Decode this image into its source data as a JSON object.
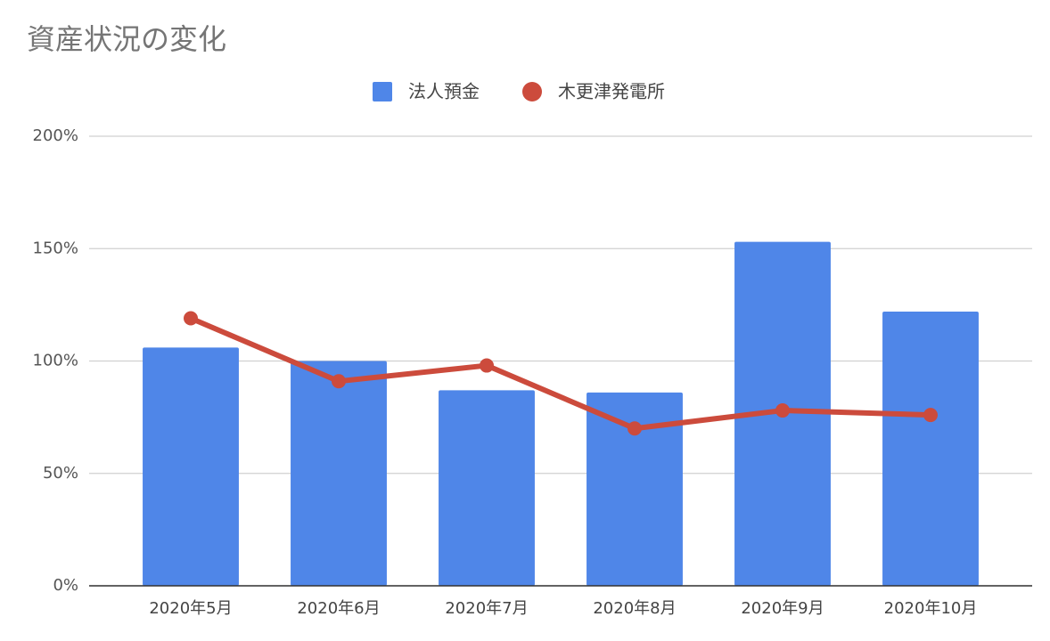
{
  "chart_data": {
    "type": "combo",
    "title": "資産状況の変化",
    "categories": [
      "2020年5月",
      "2020年6月",
      "2020年7月",
      "2020年8月",
      "2020年9月",
      "2020年10月"
    ],
    "series": [
      {
        "name": "法人預金",
        "type": "bar",
        "color": "#4f86e8",
        "values": [
          106,
          100,
          87,
          86,
          153,
          122
        ]
      },
      {
        "name": "木更津発電所",
        "type": "line",
        "color": "#cc4b3c",
        "values": [
          119,
          91,
          98,
          70,
          78,
          76
        ]
      }
    ],
    "ylim": [
      0,
      200
    ],
    "yticks": [
      {
        "value": 0,
        "label": "0%"
      },
      {
        "value": 50,
        "label": "50%"
      },
      {
        "value": 100,
        "label": "100%"
      },
      {
        "value": 150,
        "label": "150%"
      },
      {
        "value": 200,
        "label": "200%"
      }
    ],
    "grid": true,
    "legend": "top"
  }
}
